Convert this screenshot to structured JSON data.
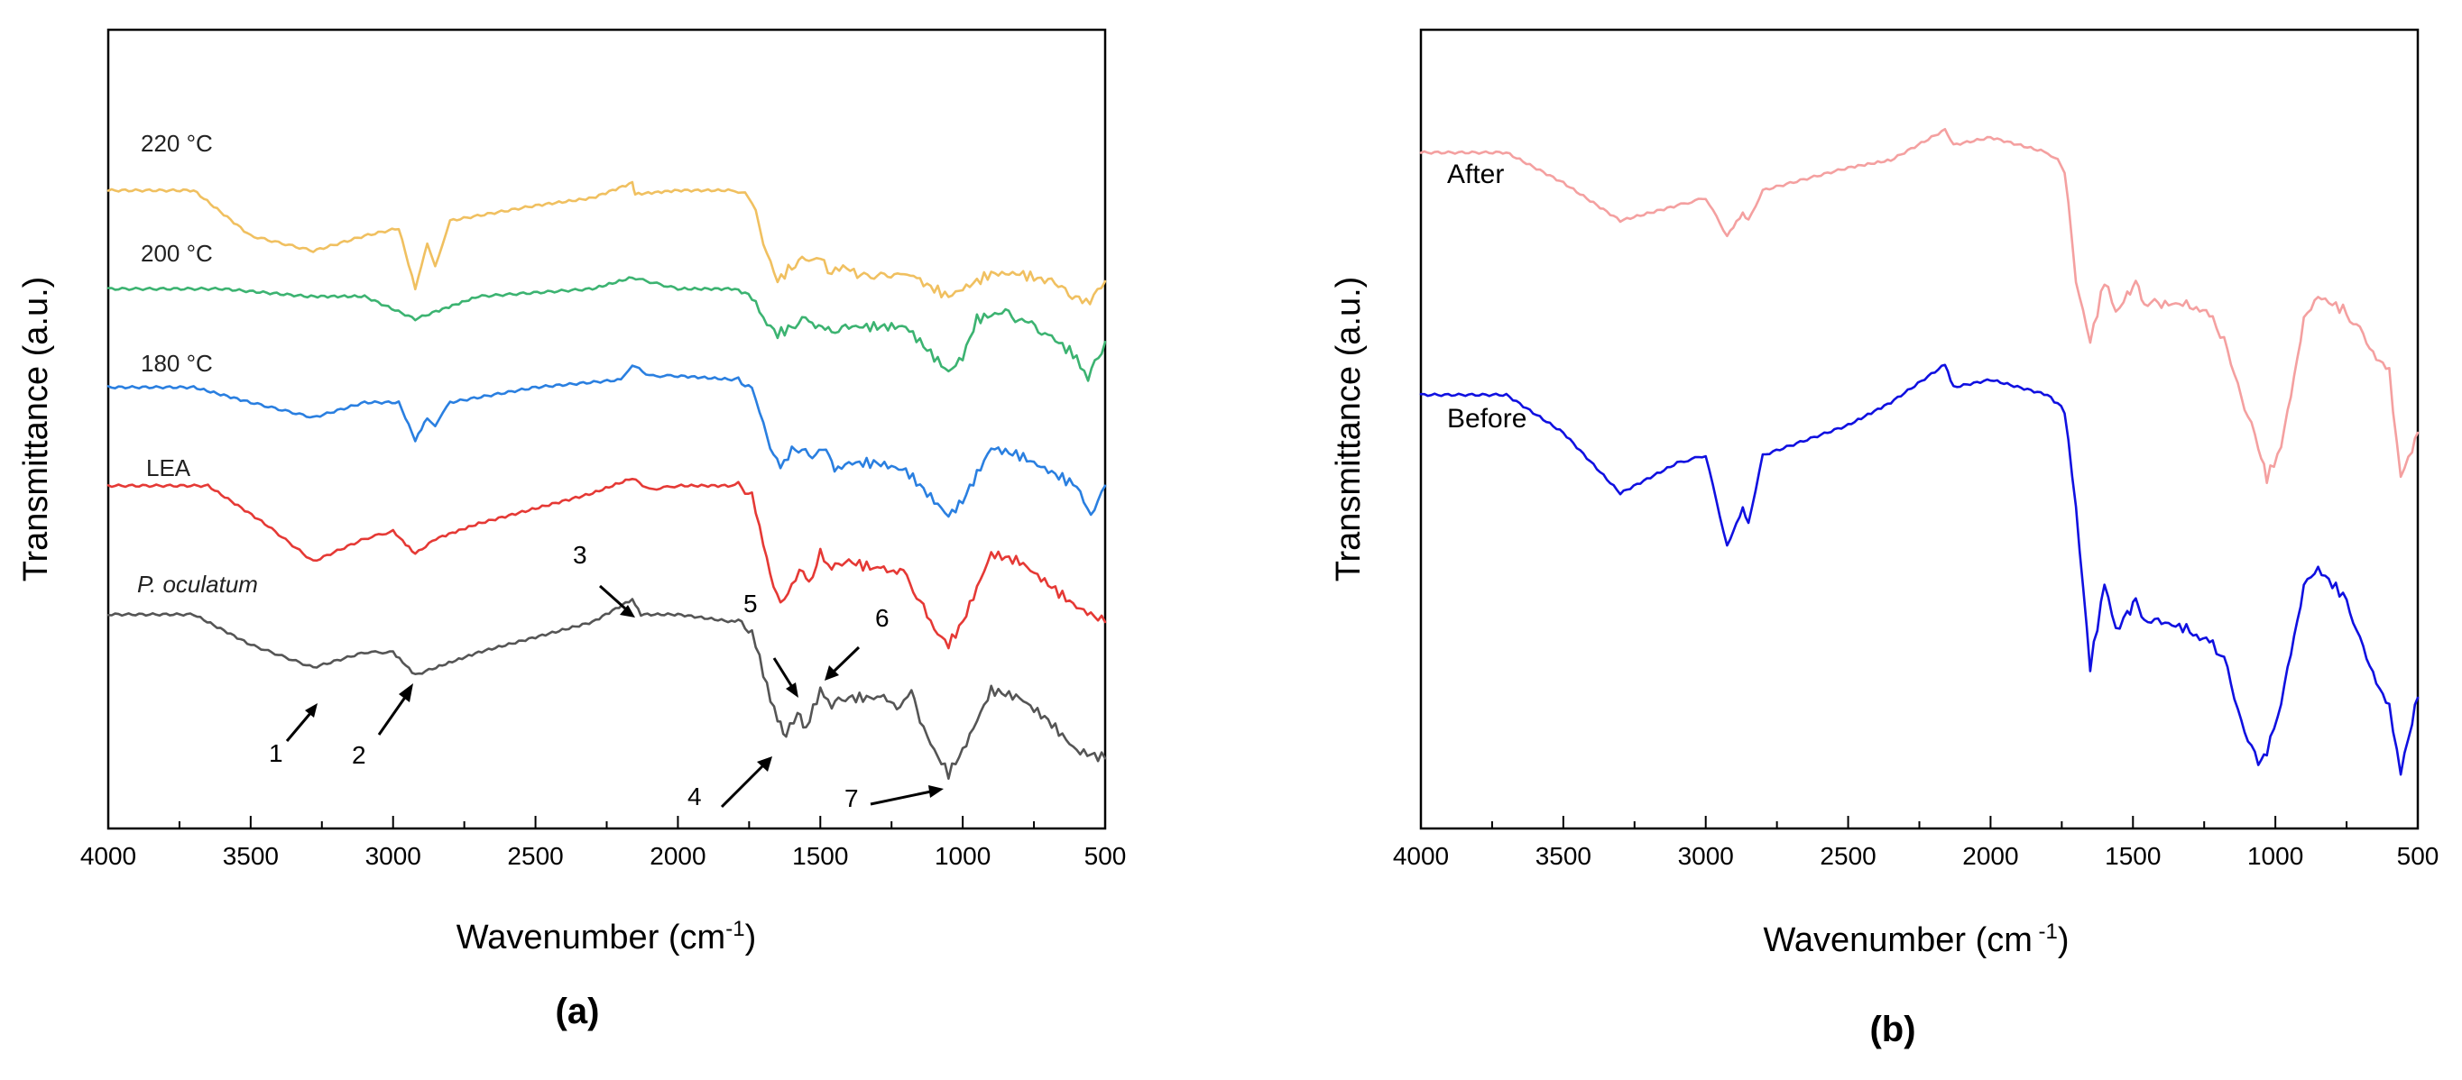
{
  "chart_data": [
    {
      "panel": "(a)",
      "type": "line",
      "xlabel": "Wavenumber (cm",
      "xlabel_sup": "-1",
      "xlabel_suffix": ")",
      "ylabel": "Transmittance (a.u.)",
      "xlim": [
        4000,
        500
      ],
      "xticks": [
        "4000",
        "3500",
        "3000",
        "2500",
        "2000",
        "1500",
        "1000",
        "500"
      ],
      "series": [
        {
          "name": "220 °C",
          "color": "#F0C060",
          "base": 0.82,
          "points": [
            [
              4000,
              0.82
            ],
            [
              3700,
              0.82
            ],
            [
              3500,
              0.76
            ],
            [
              3280,
              0.74
            ],
            [
              3100,
              0.76
            ],
            [
              2980,
              0.77
            ],
            [
              2922,
              0.69
            ],
            [
              2880,
              0.75
            ],
            [
              2852,
              0.72
            ],
            [
              2800,
              0.78
            ],
            [
              2500,
              0.8
            ],
            [
              2300,
              0.81
            ],
            [
              2160,
              0.83
            ],
            [
              2150,
              0.815
            ],
            [
              2000,
              0.82
            ],
            [
              1800,
              0.82
            ],
            [
              1740,
              0.81
            ],
            [
              1700,
              0.75
            ],
            [
              1650,
              0.7
            ],
            [
              1600,
              0.72
            ],
            [
              1540,
              0.73
            ],
            [
              1500,
              0.73
            ],
            [
              1460,
              0.71
            ],
            [
              1420,
              0.72
            ],
            [
              1370,
              0.71
            ],
            [
              1240,
              0.71
            ],
            [
              1150,
              0.7
            ],
            [
              1100,
              0.69
            ],
            [
              1050,
              0.68
            ],
            [
              1000,
              0.69
            ],
            [
              900,
              0.71
            ],
            [
              800,
              0.71
            ],
            [
              700,
              0.7
            ],
            [
              640,
              0.69
            ],
            [
              580,
              0.67
            ],
            [
              540,
              0.68
            ],
            [
              500,
              0.7
            ]
          ]
        },
        {
          "name": "200 °C",
          "color": "#3CB371",
          "base": 0.69,
          "points": [
            [
              4000,
              0.69
            ],
            [
              3600,
              0.69
            ],
            [
              3300,
              0.68
            ],
            [
              3100,
              0.68
            ],
            [
              2922,
              0.65
            ],
            [
              2850,
              0.66
            ],
            [
              2700,
              0.68
            ],
            [
              2300,
              0.69
            ],
            [
              2160,
              0.705
            ],
            [
              2000,
              0.69
            ],
            [
              1800,
              0.69
            ],
            [
              1740,
              0.68
            ],
            [
              1700,
              0.65
            ],
            [
              1650,
              0.63
            ],
            [
              1600,
              0.64
            ],
            [
              1540,
              0.65
            ],
            [
              1460,
              0.63
            ],
            [
              1400,
              0.64
            ],
            [
              1300,
              0.64
            ],
            [
              1200,
              0.64
            ],
            [
              1150,
              0.62
            ],
            [
              1100,
              0.6
            ],
            [
              1050,
              0.58
            ],
            [
              1000,
              0.6
            ],
            [
              950,
              0.65
            ],
            [
              850,
              0.66
            ],
            [
              700,
              0.63
            ],
            [
              600,
              0.6
            ],
            [
              560,
              0.57
            ],
            [
              500,
              0.62
            ]
          ]
        },
        {
          "name": "180 °C",
          "color": "#2A7FE0",
          "base": 0.56,
          "points": [
            [
              4000,
              0.56
            ],
            [
              3700,
              0.56
            ],
            [
              3500,
              0.54
            ],
            [
              3280,
              0.52
            ],
            [
              3100,
              0.54
            ],
            [
              2980,
              0.54
            ],
            [
              2922,
              0.49
            ],
            [
              2880,
              0.52
            ],
            [
              2852,
              0.51
            ],
            [
              2800,
              0.54
            ],
            [
              2500,
              0.56
            ],
            [
              2200,
              0.57
            ],
            [
              2160,
              0.59
            ],
            [
              2100,
              0.575
            ],
            [
              2000,
              0.575
            ],
            [
              1800,
              0.57
            ],
            [
              1740,
              0.56
            ],
            [
              1700,
              0.51
            ],
            [
              1640,
              0.45
            ],
            [
              1600,
              0.48
            ],
            [
              1540,
              0.47
            ],
            [
              1480,
              0.48
            ],
            [
              1450,
              0.45
            ],
            [
              1400,
              0.46
            ],
            [
              1300,
              0.46
            ],
            [
              1200,
              0.45
            ],
            [
              1100,
              0.41
            ],
            [
              1050,
              0.39
            ],
            [
              1000,
              0.41
            ],
            [
              900,
              0.48
            ],
            [
              800,
              0.47
            ],
            [
              700,
              0.45
            ],
            [
              600,
              0.43
            ],
            [
              550,
              0.39
            ],
            [
              500,
              0.43
            ]
          ]
        },
        {
          "name": "LEA",
          "color": "#E53935",
          "base": 0.43,
          "points": [
            [
              4000,
              0.43
            ],
            [
              3650,
              0.43
            ],
            [
              3450,
              0.38
            ],
            [
              3280,
              0.33
            ],
            [
              3100,
              0.36
            ],
            [
              3000,
              0.37
            ],
            [
              2922,
              0.34
            ],
            [
              2850,
              0.36
            ],
            [
              2700,
              0.38
            ],
            [
              2500,
              0.4
            ],
            [
              2300,
              0.42
            ],
            [
              2160,
              0.44
            ],
            [
              2100,
              0.425
            ],
            [
              2000,
              0.43
            ],
            [
              1800,
              0.43
            ],
            [
              1740,
              0.42
            ],
            [
              1700,
              0.35
            ],
            [
              1640,
              0.27
            ],
            [
              1600,
              0.3
            ],
            [
              1560,
              0.32
            ],
            [
              1540,
              0.3
            ],
            [
              1500,
              0.34
            ],
            [
              1460,
              0.32
            ],
            [
              1400,
              0.33
            ],
            [
              1300,
              0.32
            ],
            [
              1220,
              0.32
            ],
            [
              1150,
              0.28
            ],
            [
              1100,
              0.24
            ],
            [
              1050,
              0.22
            ],
            [
              1000,
              0.25
            ],
            [
              900,
              0.34
            ],
            [
              800,
              0.33
            ],
            [
              700,
              0.3
            ],
            [
              600,
              0.27
            ],
            [
              500,
              0.25
            ]
          ]
        },
        {
          "name": "P. oculatum",
          "color": "#555555",
          "base": 0.26,
          "points": [
            [
              4000,
              0.26
            ],
            [
              3700,
              0.26
            ],
            [
              3500,
              0.22
            ],
            [
              3280,
              0.19
            ],
            [
              3100,
              0.21
            ],
            [
              3000,
              0.21
            ],
            [
              2922,
              0.18
            ],
            [
              2850,
              0.19
            ],
            [
              2700,
              0.21
            ],
            [
              2500,
              0.23
            ],
            [
              2300,
              0.25
            ],
            [
              2160,
              0.28
            ],
            [
              2130,
              0.26
            ],
            [
              2000,
              0.26
            ],
            [
              1800,
              0.25
            ],
            [
              1740,
              0.24
            ],
            [
              1700,
              0.18
            ],
            [
              1650,
              0.12
            ],
            [
              1620,
              0.1
            ],
            [
              1580,
              0.13
            ],
            [
              1550,
              0.11
            ],
            [
              1500,
              0.16
            ],
            [
              1460,
              0.14
            ],
            [
              1400,
              0.15
            ],
            [
              1300,
              0.15
            ],
            [
              1220,
              0.14
            ],
            [
              1180,
              0.16
            ],
            [
              1150,
              0.12
            ],
            [
              1100,
              0.08
            ],
            [
              1050,
              0.05
            ],
            [
              1000,
              0.08
            ],
            [
              900,
              0.16
            ],
            [
              800,
              0.15
            ],
            [
              700,
              0.12
            ],
            [
              600,
              0.08
            ],
            [
              500,
              0.07
            ]
          ]
        }
      ],
      "annotations": [
        "1",
        "2",
        "3",
        "4",
        "5",
        "6",
        "7"
      ]
    },
    {
      "panel": "(b)",
      "type": "line",
      "xlabel": "Wavenumber (cm",
      "xlabel_sup": " -1",
      "xlabel_suffix": ")",
      "ylabel": "Transmittance (a.u.)",
      "xlim": [
        4000,
        500
      ],
      "xticks": [
        "4000",
        "3500",
        "3000",
        "2500",
        "2000",
        "1500",
        "1000",
        "500"
      ],
      "series": [
        {
          "name": "After",
          "color": "#F4A0A0",
          "points": [
            [
              4000,
              0.87
            ],
            [
              3700,
              0.87
            ],
            [
              3500,
              0.83
            ],
            [
              3300,
              0.78
            ],
            [
              3100,
              0.8
            ],
            [
              3000,
              0.81
            ],
            [
              2925,
              0.76
            ],
            [
              2870,
              0.79
            ],
            [
              2850,
              0.78
            ],
            [
              2800,
              0.82
            ],
            [
              2500,
              0.85
            ],
            [
              2350,
              0.86
            ],
            [
              2160,
              0.9
            ],
            [
              2130,
              0.88
            ],
            [
              2000,
              0.89
            ],
            [
              1800,
              0.87
            ],
            [
              1740,
              0.85
            ],
            [
              1700,
              0.7
            ],
            [
              1650,
              0.62
            ],
            [
              1600,
              0.7
            ],
            [
              1560,
              0.66
            ],
            [
              1520,
              0.68
            ],
            [
              1490,
              0.7
            ],
            [
              1460,
              0.67
            ],
            [
              1400,
              0.67
            ],
            [
              1300,
              0.67
            ],
            [
              1220,
              0.65
            ],
            [
              1180,
              0.62
            ],
            [
              1120,
              0.55
            ],
            [
              1060,
              0.48
            ],
            [
              1030,
              0.44
            ],
            [
              980,
              0.48
            ],
            [
              900,
              0.65
            ],
            [
              850,
              0.68
            ],
            [
              750,
              0.66
            ],
            [
              680,
              0.62
            ],
            [
              600,
              0.58
            ],
            [
              560,
              0.44
            ],
            [
              520,
              0.48
            ],
            [
              500,
              0.5
            ]
          ]
        },
        {
          "name": "Before",
          "color": "#1010E0",
          "points": [
            [
              4000,
              0.55
            ],
            [
              3700,
              0.55
            ],
            [
              3500,
              0.5
            ],
            [
              3300,
              0.42
            ],
            [
              3100,
              0.46
            ],
            [
              3000,
              0.47
            ],
            [
              2925,
              0.35
            ],
            [
              2870,
              0.4
            ],
            [
              2850,
              0.38
            ],
            [
              2800,
              0.47
            ],
            [
              2500,
              0.51
            ],
            [
              2350,
              0.54
            ],
            [
              2160,
              0.59
            ],
            [
              2130,
              0.56
            ],
            [
              2000,
              0.57
            ],
            [
              1800,
              0.55
            ],
            [
              1740,
              0.53
            ],
            [
              1700,
              0.4
            ],
            [
              1650,
              0.19
            ],
            [
              1600,
              0.3
            ],
            [
              1560,
              0.24
            ],
            [
              1520,
              0.26
            ],
            [
              1490,
              0.28
            ],
            [
              1460,
              0.25
            ],
            [
              1400,
              0.25
            ],
            [
              1300,
              0.24
            ],
            [
              1220,
              0.22
            ],
            [
              1180,
              0.2
            ],
            [
              1120,
              0.12
            ],
            [
              1060,
              0.06
            ],
            [
              1030,
              0.08
            ],
            [
              980,
              0.14
            ],
            [
              900,
              0.3
            ],
            [
              850,
              0.32
            ],
            [
              750,
              0.28
            ],
            [
              680,
              0.2
            ],
            [
              600,
              0.14
            ],
            [
              560,
              0.05
            ],
            [
              520,
              0.12
            ],
            [
              500,
              0.15
            ]
          ]
        }
      ]
    }
  ]
}
